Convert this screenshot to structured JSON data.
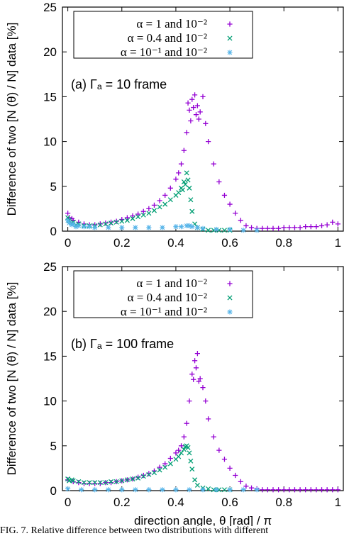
{
  "caption": "FIG. 7. Relative difference between two distributions with different",
  "chart_data": [
    {
      "type": "scatter",
      "annotation": "(a) Γₐ = 10 frame",
      "ylabel": "Difference of two [N (θ) / N] data [%]",
      "xlabel": "",
      "xlim": [
        -0.02,
        1.02
      ],
      "ylim": [
        0,
        25
      ],
      "xticks": [
        "0",
        "0.2",
        "0.4",
        "0.6",
        "0.8",
        "1"
      ],
      "yticks": [
        "0",
        "5",
        "10",
        "15",
        "20",
        "25"
      ],
      "grid": false,
      "legend_position": "top-left",
      "series": [
        {
          "name": "α = 1 and 10⁻²",
          "color": "#9400d3",
          "marker": "plus",
          "x": [
            0.0,
            0.02,
            0.04,
            0.06,
            0.08,
            0.1,
            0.12,
            0.14,
            0.16,
            0.18,
            0.2,
            0.22,
            0.24,
            0.26,
            0.28,
            0.3,
            0.32,
            0.34,
            0.36,
            0.38,
            0.4,
            0.41,
            0.42,
            0.43,
            0.44,
            0.45,
            0.46,
            0.47,
            0.48,
            0.49,
            0.5,
            0.51,
            0.52,
            0.54,
            0.56,
            0.58,
            0.6,
            0.62,
            0.64,
            0.66,
            0.68,
            0.7,
            0.72,
            0.74,
            0.76,
            0.78,
            0.8,
            0.82,
            0.84,
            0.86,
            0.88,
            0.9,
            0.92,
            0.94,
            0.96,
            0.98,
            1.0,
            0.005,
            0.015,
            0.445,
            0.455,
            0.465,
            0.475,
            0.485
          ],
          "y": [
            2.0,
            1.2,
            1.0,
            0.8,
            0.7,
            0.7,
            0.8,
            0.9,
            1.0,
            1.1,
            1.3,
            1.5,
            1.7,
            1.9,
            2.2,
            2.5,
            2.9,
            3.4,
            4.0,
            4.8,
            5.8,
            6.5,
            7.5,
            9.0,
            11.0,
            13.5,
            14.7,
            15.2,
            14.0,
            13.3,
            15.0,
            12.0,
            10.0,
            7.5,
            5.5,
            4.0,
            3.0,
            2.0,
            1.2,
            0.6,
            0.4,
            0.3,
            0.3,
            0.3,
            0.3,
            0.3,
            0.4,
            0.4,
            0.4,
            0.4,
            0.5,
            0.5,
            0.5,
            0.6,
            0.7,
            1.0,
            0.8,
            1.5,
            1.4,
            14.3,
            12.3,
            13.8,
            13.0,
            12.5
          ]
        },
        {
          "name": "α = 0.4 and 10⁻²",
          "color": "#009e73",
          "marker": "cross",
          "x": [
            0.0,
            0.02,
            0.04,
            0.06,
            0.08,
            0.1,
            0.12,
            0.14,
            0.16,
            0.18,
            0.2,
            0.22,
            0.24,
            0.26,
            0.28,
            0.3,
            0.32,
            0.34,
            0.36,
            0.38,
            0.4,
            0.41,
            0.42,
            0.43,
            0.44,
            0.445,
            0.45,
            0.455,
            0.46,
            0.47,
            0.48,
            0.5,
            0.52,
            0.54,
            0.56,
            0.58,
            0.6,
            0.005,
            0.015,
            0.03,
            0.435,
            0.425
          ],
          "y": [
            1.5,
            1.0,
            0.8,
            0.6,
            0.6,
            0.6,
            0.7,
            0.8,
            0.9,
            1.0,
            1.1,
            1.2,
            1.4,
            1.6,
            1.8,
            2.0,
            2.3,
            2.7,
            3.0,
            3.5,
            4.0,
            4.3,
            4.8,
            5.5,
            6.5,
            5.7,
            4.8,
            3.5,
            2.2,
            0.8,
            0.4,
            0.2,
            0.1,
            0.1,
            0.1,
            0.1,
            0.1,
            1.2,
            0.9,
            0.7,
            5.2,
            4.6
          ]
        },
        {
          "name": "α = 10⁻¹ and 10⁻²",
          "color": "#56b4e9",
          "marker": "star",
          "x": [
            0.0,
            0.02,
            0.04,
            0.06,
            0.08,
            0.1,
            0.15,
            0.2,
            0.25,
            0.3,
            0.35,
            0.4,
            0.42,
            0.44,
            0.46,
            0.48,
            0.5,
            0.55,
            0.6,
            0.65,
            0.7,
            0.005,
            0.015,
            0.03,
            0.45
          ],
          "y": [
            1.2,
            0.8,
            0.6,
            0.5,
            0.5,
            0.4,
            0.4,
            0.4,
            0.4,
            0.4,
            0.4,
            0.5,
            0.5,
            0.6,
            0.5,
            0.4,
            0.3,
            0.2,
            0.2,
            0.1,
            0.1,
            0.9,
            0.7,
            0.5,
            0.6
          ]
        }
      ]
    },
    {
      "type": "scatter",
      "annotation": "(b) Γₐ = 100 frame",
      "ylabel": "Difference of two [N (θ) / N] data [%]",
      "xlabel": "direction angle, θ [rad] / π",
      "xlim": [
        -0.02,
        1.02
      ],
      "ylim": [
        0,
        25
      ],
      "xticks": [
        "0",
        "0.2",
        "0.4",
        "0.6",
        "0.8",
        "1"
      ],
      "yticks": [
        "0",
        "5",
        "10",
        "15",
        "20",
        "25"
      ],
      "grid": false,
      "legend_position": "top-left",
      "series": [
        {
          "name": "α = 1 and 10⁻²",
          "color": "#9400d3",
          "marker": "plus",
          "x": [
            0.0,
            0.02,
            0.04,
            0.06,
            0.08,
            0.1,
            0.12,
            0.14,
            0.16,
            0.18,
            0.2,
            0.22,
            0.24,
            0.26,
            0.28,
            0.3,
            0.32,
            0.34,
            0.36,
            0.38,
            0.4,
            0.41,
            0.42,
            0.43,
            0.44,
            0.45,
            0.46,
            0.47,
            0.48,
            0.49,
            0.5,
            0.51,
            0.52,
            0.54,
            0.56,
            0.58,
            0.6,
            0.62,
            0.64,
            0.66,
            0.68,
            0.7,
            0.72,
            0.74,
            0.76,
            0.78,
            0.8,
            0.82,
            0.84,
            0.86,
            0.88,
            0.9,
            0.92,
            0.94,
            0.96,
            0.98,
            1.0,
            0.465,
            0.475,
            0.485
          ],
          "y": [
            1.2,
            1.0,
            0.9,
            0.8,
            0.8,
            0.8,
            0.8,
            0.9,
            0.9,
            1.0,
            1.1,
            1.2,
            1.3,
            1.5,
            1.7,
            1.9,
            2.2,
            2.6,
            3.0,
            3.6,
            4.2,
            4.5,
            5.0,
            6.0,
            7.5,
            10.0,
            13.0,
            14.5,
            15.3,
            12.5,
            11.5,
            10.0,
            8.0,
            6.0,
            4.5,
            3.5,
            2.5,
            1.7,
            1.0,
            0.5,
            0.3,
            0.2,
            0.1,
            0.1,
            0.1,
            0.1,
            0.1,
            0.1,
            0.1,
            0.1,
            0.1,
            0.1,
            0.1,
            0.1,
            0.1,
            0.1,
            0.1,
            12.4,
            13.7,
            12.2
          ]
        },
        {
          "name": "α = 0.4 and 10⁻²",
          "color": "#009e73",
          "marker": "cross",
          "x": [
            0.0,
            0.02,
            0.04,
            0.06,
            0.08,
            0.1,
            0.12,
            0.14,
            0.16,
            0.18,
            0.2,
            0.22,
            0.24,
            0.26,
            0.28,
            0.3,
            0.32,
            0.34,
            0.36,
            0.38,
            0.4,
            0.41,
            0.42,
            0.43,
            0.44,
            0.445,
            0.45,
            0.455,
            0.46,
            0.47,
            0.48,
            0.5,
            0.52,
            0.54,
            0.56,
            0.58,
            0.6,
            0.005,
            0.015,
            0.435
          ],
          "y": [
            1.3,
            1.1,
            1.0,
            0.9,
            0.9,
            0.9,
            0.9,
            0.9,
            1.0,
            1.0,
            1.1,
            1.2,
            1.3,
            1.4,
            1.6,
            1.8,
            2.0,
            2.3,
            2.6,
            3.0,
            3.5,
            3.8,
            4.2,
            4.6,
            5.0,
            4.8,
            4.2,
            3.3,
            2.4,
            1.2,
            0.6,
            0.3,
            0.2,
            0.1,
            0.1,
            0.1,
            0.1,
            1.1,
            1.2,
            4.9
          ]
        },
        {
          "name": "α = 10⁻¹ and 10⁻²",
          "color": "#56b4e9",
          "marker": "star",
          "x": [
            0.0,
            0.05,
            0.1,
            0.15,
            0.2,
            0.25,
            0.3,
            0.35,
            0.4,
            0.45,
            0.5,
            0.55,
            0.6,
            0.65,
            0.7
          ],
          "y": [
            0.2,
            0.1,
            0.1,
            0.1,
            0.1,
            0.1,
            0.1,
            0.1,
            0.1,
            0.1,
            0.1,
            0.1,
            0.1,
            0.1,
            0.1
          ]
        }
      ]
    }
  ]
}
